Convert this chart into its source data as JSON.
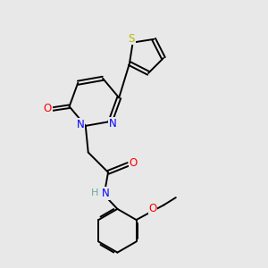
{
  "bg_color": "#e8e8e8",
  "atom_colors": {
    "C": "#000000",
    "N": "#0000ff",
    "O": "#ff0000",
    "S": "#b8b800",
    "H": "#6aa8a8"
  },
  "bond_color": "#000000",
  "lw": 1.4
}
